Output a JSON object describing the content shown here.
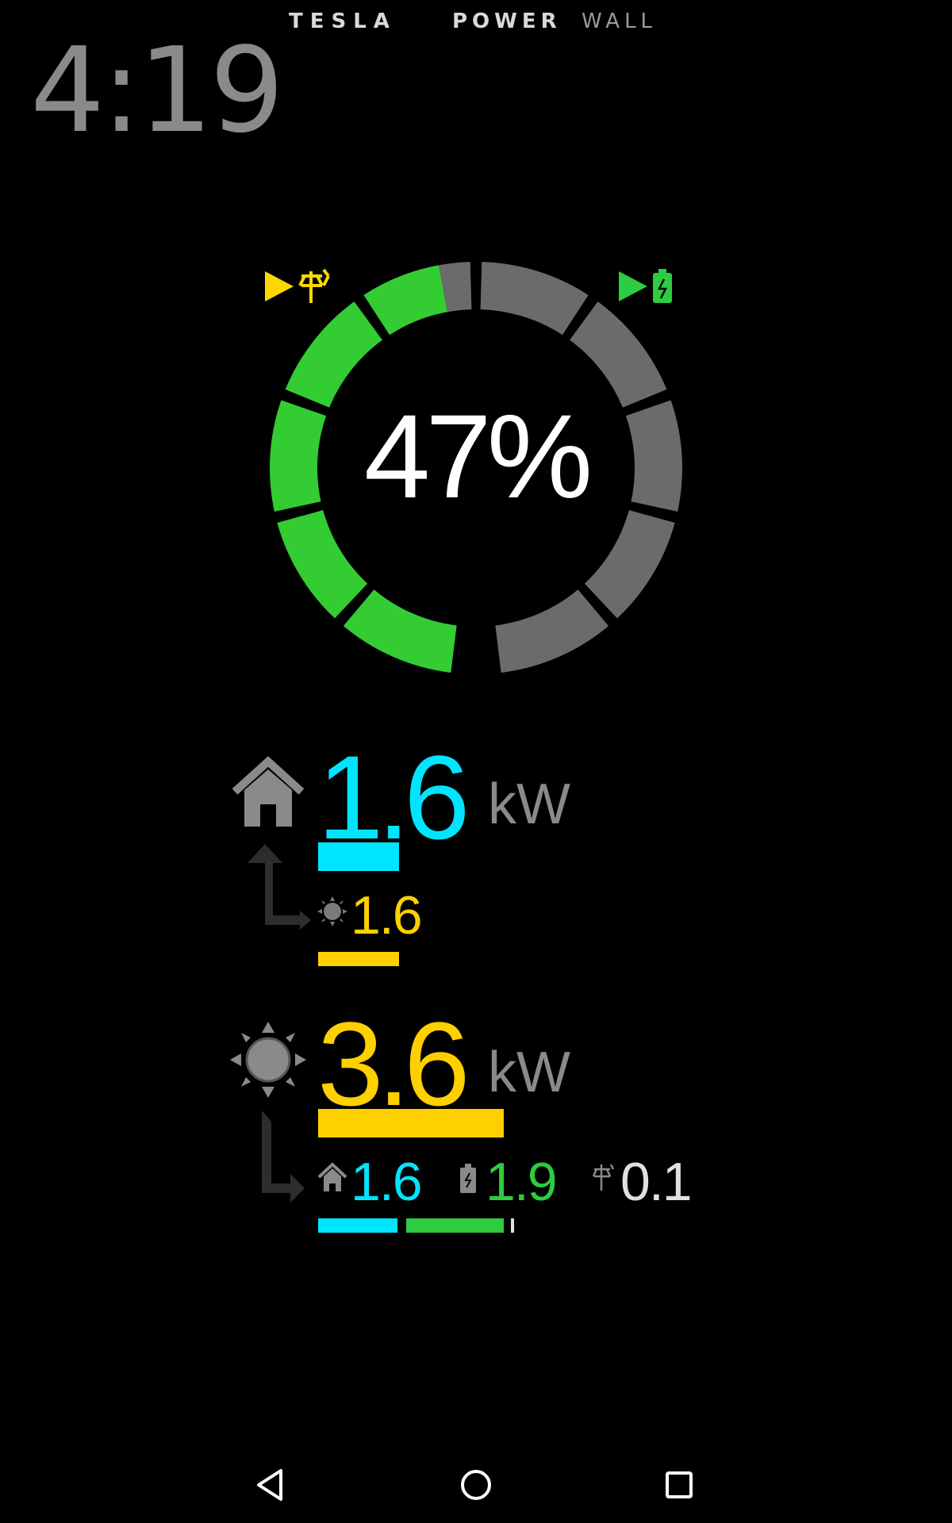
{
  "header": {
    "brand_left": "TESLA",
    "brand_power": "POWER",
    "brand_wall": "WALL"
  },
  "clock": "4:19",
  "battery": {
    "percent_label": "47%",
    "charge_fraction": 0.47,
    "indicators": {
      "grid": {
        "icon": "grid-tower-icon",
        "arrow": "play-arrow-icon",
        "color": "#FFD700"
      },
      "battery": {
        "icon": "battery-charging-icon",
        "arrow": "play-arrow-icon",
        "color": "#2ECC40"
      }
    },
    "colors": {
      "filled": "#33CC33",
      "empty": "#6B6B6B"
    }
  },
  "home": {
    "icon": "house-icon",
    "value": "1.6",
    "unit": "kW",
    "value_color": "#00E5FF",
    "bar_color": "#00E5FF",
    "sources": [
      {
        "icon": "sun-small-icon",
        "value": "1.6",
        "color": "#FFD000"
      }
    ]
  },
  "solar": {
    "icon": "sun-icon",
    "value": "3.6",
    "unit": "kW",
    "value_color": "#FFD000",
    "bar_color": "#FFD000",
    "destinations": [
      {
        "icon": "house-small-icon",
        "value": "1.6",
        "color": "#00E5FF"
      },
      {
        "icon": "battery-small-icon",
        "value": "1.9",
        "color": "#2ECC40"
      },
      {
        "icon": "grid-tower-small-icon",
        "value": "0.1",
        "color": "#E0E0E0"
      }
    ]
  },
  "navbar": {
    "back": "back-icon",
    "home": "home-circle-icon",
    "recents": "recents-icon"
  }
}
